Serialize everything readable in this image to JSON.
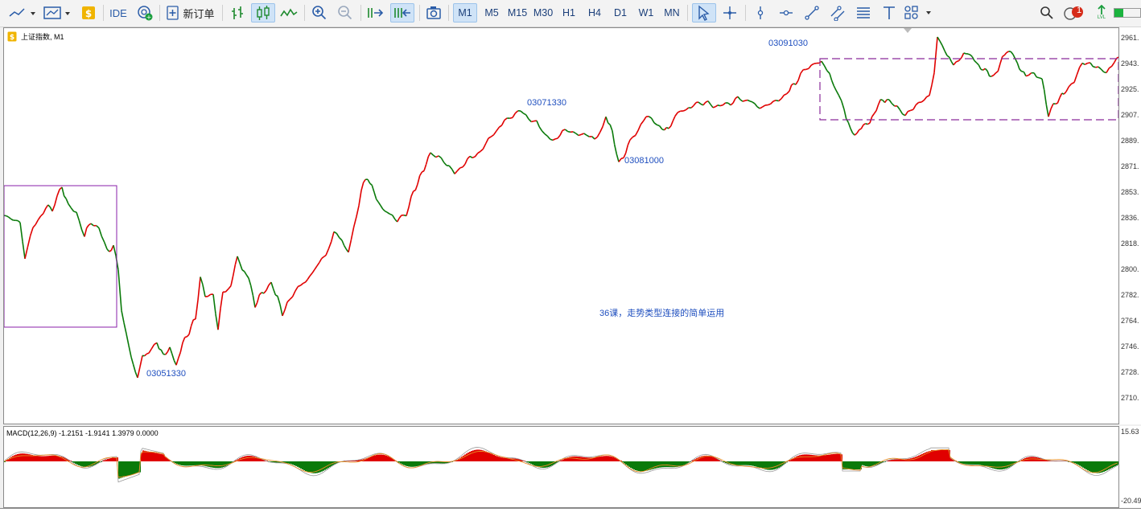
{
  "toolbar": {
    "ide_label": "IDE",
    "new_order_label": "新订单",
    "timeframes": [
      "M1",
      "M5",
      "M15",
      "M30",
      "H1",
      "H4",
      "D1",
      "W1",
      "MN"
    ],
    "active_timeframe": "M1",
    "alerts_badge": "1",
    "signal_label": "LVL"
  },
  "chart": {
    "title": "上证指数, M1",
    "price_labels": [
      "2961.",
      "2943.",
      "2925.",
      "2907.",
      "2889.",
      "2871.",
      "2853.",
      "2836.",
      "2818.",
      "2800.",
      "2782.",
      "2764.",
      "2746.",
      "2728.",
      "2710."
    ],
    "annotations": {
      "a1": "03051330",
      "a2": "03071330",
      "a3": "03081000",
      "a4": "03091030",
      "lesson": "36课，走势类型连接的简单运用"
    },
    "colors": {
      "up": "#e00000",
      "down": "#0a7a0a",
      "box_purple": "#8a1fa8",
      "box_dashed": "#8a2b9a",
      "annotation": "#1f4fbf"
    }
  },
  "macd": {
    "title": "MACD(12,26,9) -1.2151 -1.9141 1.3979 0.0000",
    "top_label": "15.63",
    "bottom_label": "-20.49"
  }
}
